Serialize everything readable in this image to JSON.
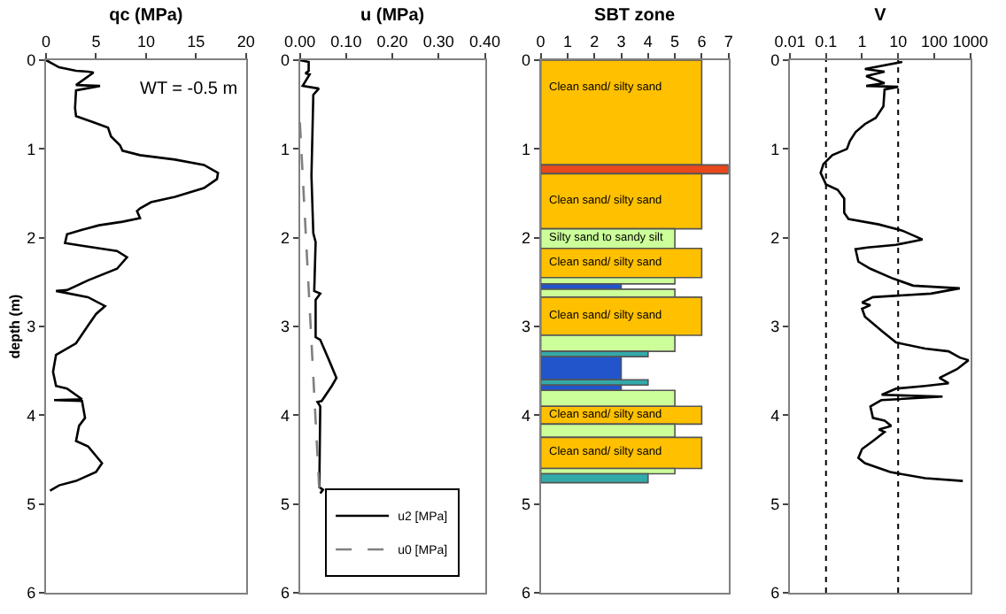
{
  "chart_data": [
    {
      "type": "line",
      "xlabel": "qc (MPa)",
      "ylabel": "depth (m)",
      "xlim": [
        0,
        20
      ],
      "xticks": [
        0,
        5,
        10,
        15,
        20
      ],
      "ylim": [
        6,
        0
      ],
      "yticks": [
        0,
        1,
        2,
        3,
        4,
        5,
        6
      ],
      "legend": false,
      "marker": "none",
      "line_style": "solid",
      "annotations": [
        "WT = -0.5 m"
      ],
      "series": [
        {
          "color": "#000000",
          "x": [
            0,
            1.3,
            3,
            4.2,
            4.75,
            3,
            5.4,
            3,
            2.9,
            3,
            4.75,
            6.2,
            6.5,
            7.4,
            7.65,
            9.4,
            12.9,
            15.8,
            17.2,
            17.1,
            15.8,
            12.9,
            10.5,
            9.4,
            9.1,
            9.4,
            7.65,
            5.3,
            3.6,
            2.1,
            1.9,
            3.6,
            7.1,
            8.1,
            7.1,
            4.2,
            2.1,
            1,
            4.2,
            5.9,
            5,
            4.2,
            3,
            1,
            0.7,
            1,
            2.1,
            3.6,
            0.8,
            3.6,
            3.9,
            3.3,
            3,
            4.2,
            5.6,
            5,
            3,
            1.3,
            0.4
          ],
          "values": [
            0,
            0.08,
            0.12,
            0.13,
            0.14,
            0.28,
            0.29,
            0.34,
            0.54,
            0.63,
            0.7,
            0.76,
            0.86,
            0.96,
            1.02,
            1.07,
            1.12,
            1.18,
            1.27,
            1.34,
            1.44,
            1.54,
            1.6,
            1.67,
            1.7,
            1.78,
            1.82,
            1.86,
            1.91,
            1.96,
            2.06,
            2.09,
            2.15,
            2.22,
            2.35,
            2.48,
            2.59,
            2.6,
            2.67,
            2.77,
            2.86,
            2.99,
            3.19,
            3.32,
            3.51,
            3.67,
            3.7,
            3.82,
            3.83,
            3.84,
            4.03,
            4.12,
            4.29,
            4.35,
            4.54,
            4.64,
            4.74,
            4.79,
            4.85
          ]
        }
      ]
    },
    {
      "type": "line",
      "xlabel": "u (MPa)",
      "xlim": [
        0,
        0.4
      ],
      "xticks": [
        {
          "value": 0,
          "label": "0.00"
        },
        {
          "value": 0.1,
          "label": "0.10"
        },
        {
          "value": 0.2,
          "label": "0.20"
        },
        {
          "value": 0.3,
          "label": "0.30"
        },
        {
          "value": 0.4,
          "label": "0.40"
        }
      ],
      "ylim": [
        6,
        0
      ],
      "yticks": [
        0,
        1,
        2,
        3,
        4,
        5,
        6
      ],
      "legend": "bottom",
      "marker": "none",
      "series": [
        {
          "name": "u2 [MPa]",
          "color": "#000000",
          "line_style": "solid",
          "x": [
            0,
            0.019,
            0.019,
            0.012,
            0.021,
            0.006,
            0.041,
            0.029,
            0.025,
            0.029,
            0.034,
            0.031,
            0.044,
            0.034,
            0.034,
            0.044,
            0.063,
            0.079,
            0.069,
            0.047,
            0.038,
            0.044,
            0.042,
            0.05,
            0.044
          ],
          "values": [
            0,
            0.02,
            0.12,
            0.15,
            0.16,
            0.29,
            0.32,
            0.39,
            1.3,
            1.95,
            2.05,
            2.6,
            2.63,
            2.7,
            3.12,
            3.15,
            3.38,
            3.58,
            3.67,
            3.84,
            3.85,
            3.9,
            4.81,
            4.84,
            4.88
          ]
        },
        {
          "name": "u0 [MPa]",
          "color": "#808080",
          "line_style": "dashed",
          "x": [
            0,
            0.042
          ],
          "values": [
            0.7,
            4.85
          ]
        }
      ]
    },
    {
      "type": "bar",
      "orientation": "horizontal",
      "xlabel": "SBT zone",
      "xlim": [
        0,
        7
      ],
      "xticks": [
        0,
        1,
        2,
        3,
        4,
        5,
        6,
        7
      ],
      "ylim": [
        6,
        0
      ],
      "yticks": [
        0,
        1,
        2,
        3,
        4,
        5,
        6
      ],
      "legend": false,
      "annotations": [
        "Clean sand/ silty sand",
        "Clean sand/ silty sand",
        "Silty sand to sandy silt",
        "Clean sand/ silty sand",
        "Clean sand/ silty sand",
        "Clean sand/ silty sand",
        "Clean sand/ silty sand"
      ],
      "x": [
        0.59,
        1.23,
        1.59,
        2.01,
        2.285,
        2.485,
        2.55,
        2.625,
        2.885,
        3.19,
        3.31,
        3.47,
        3.63,
        3.69,
        3.81,
        4.0,
        4.175,
        4.425,
        4.63,
        4.71
      ],
      "values": [
        6,
        7,
        6,
        5,
        6,
        5,
        3,
        5,
        6,
        5,
        4,
        3,
        4,
        3,
        5,
        6,
        5,
        6,
        5,
        4
      ],
      "colors": [
        "#ffc000",
        "#e8481c",
        "#ffc000",
        "#ccff99",
        "#ffc000",
        "#ccff99",
        "#2255cc",
        "#ccff99",
        "#ffc000",
        "#ccff99",
        "#33aaaa",
        "#2255cc",
        "#33aaaa",
        "#2255cc",
        "#ccff99",
        "#ffc000",
        "#ccff99",
        "#ffc000",
        "#ccff99",
        "#33aaaa"
      ]
    },
    {
      "type": "line",
      "xlabel": "V",
      "log": "x",
      "xlim": [
        0.01,
        1000
      ],
      "xticks": [
        0.01,
        0.1,
        1,
        10,
        100,
        1000
      ],
      "ylim": [
        6,
        0
      ],
      "yticks": [
        0,
        1,
        2,
        3,
        4,
        5,
        6
      ],
      "legend": false,
      "marker": "none",
      "line_style": "solid",
      "ref_lines": [
        {
          "axis": "x",
          "value": 0.1,
          "color": "#000000",
          "line_style": "dotted"
        },
        {
          "axis": "x",
          "value": 10,
          "color": "#000000",
          "line_style": "dotted"
        }
      ],
      "series": [
        {
          "color": "#000000",
          "x": [
            13,
            1.2,
            4.2,
            1.3,
            4.2,
            1.3,
            10,
            4.2,
            3.9,
            2.4,
            1.2,
            0.66,
            0.46,
            0.38,
            0.15,
            0.085,
            0.071,
            0.1,
            0.21,
            0.32,
            0.32,
            0.42,
            2.9,
            13,
            47,
            8.7,
            1.4,
            0.66,
            0.79,
            1.7,
            7.2,
            26,
            510,
            81,
            2,
            1,
            1.7,
            1,
            1.2,
            3.5,
            8.7,
            56,
            250,
            510,
            890,
            430,
            140,
            250,
            56,
            8.7,
            3.5,
            170,
            3.4,
            1.7,
            2,
            4.2,
            6.4,
            2.9,
            4.2,
            2,
            1,
            0.79,
            1.2,
            6,
            56,
            620
          ],
          "values": [
            0.02,
            0.1,
            0.13,
            0.18,
            0.26,
            0.29,
            0.3,
            0.33,
            0.52,
            0.65,
            0.72,
            0.81,
            0.91,
            1.0,
            1.07,
            1.17,
            1.27,
            1.4,
            1.46,
            1.56,
            1.72,
            1.79,
            1.85,
            1.92,
            2.02,
            2.08,
            2.11,
            2.13,
            2.27,
            2.35,
            2.46,
            2.54,
            2.57,
            2.63,
            2.67,
            2.73,
            2.76,
            2.8,
            2.89,
            3.05,
            3.18,
            3.25,
            3.28,
            3.35,
            3.38,
            3.48,
            3.58,
            3.64,
            3.67,
            3.7,
            3.77,
            3.79,
            3.83,
            3.9,
            4.03,
            4.06,
            4.12,
            4.16,
            4.19,
            4.29,
            4.38,
            4.48,
            4.54,
            4.64,
            4.71,
            4.74
          ]
        }
      ]
    }
  ]
}
